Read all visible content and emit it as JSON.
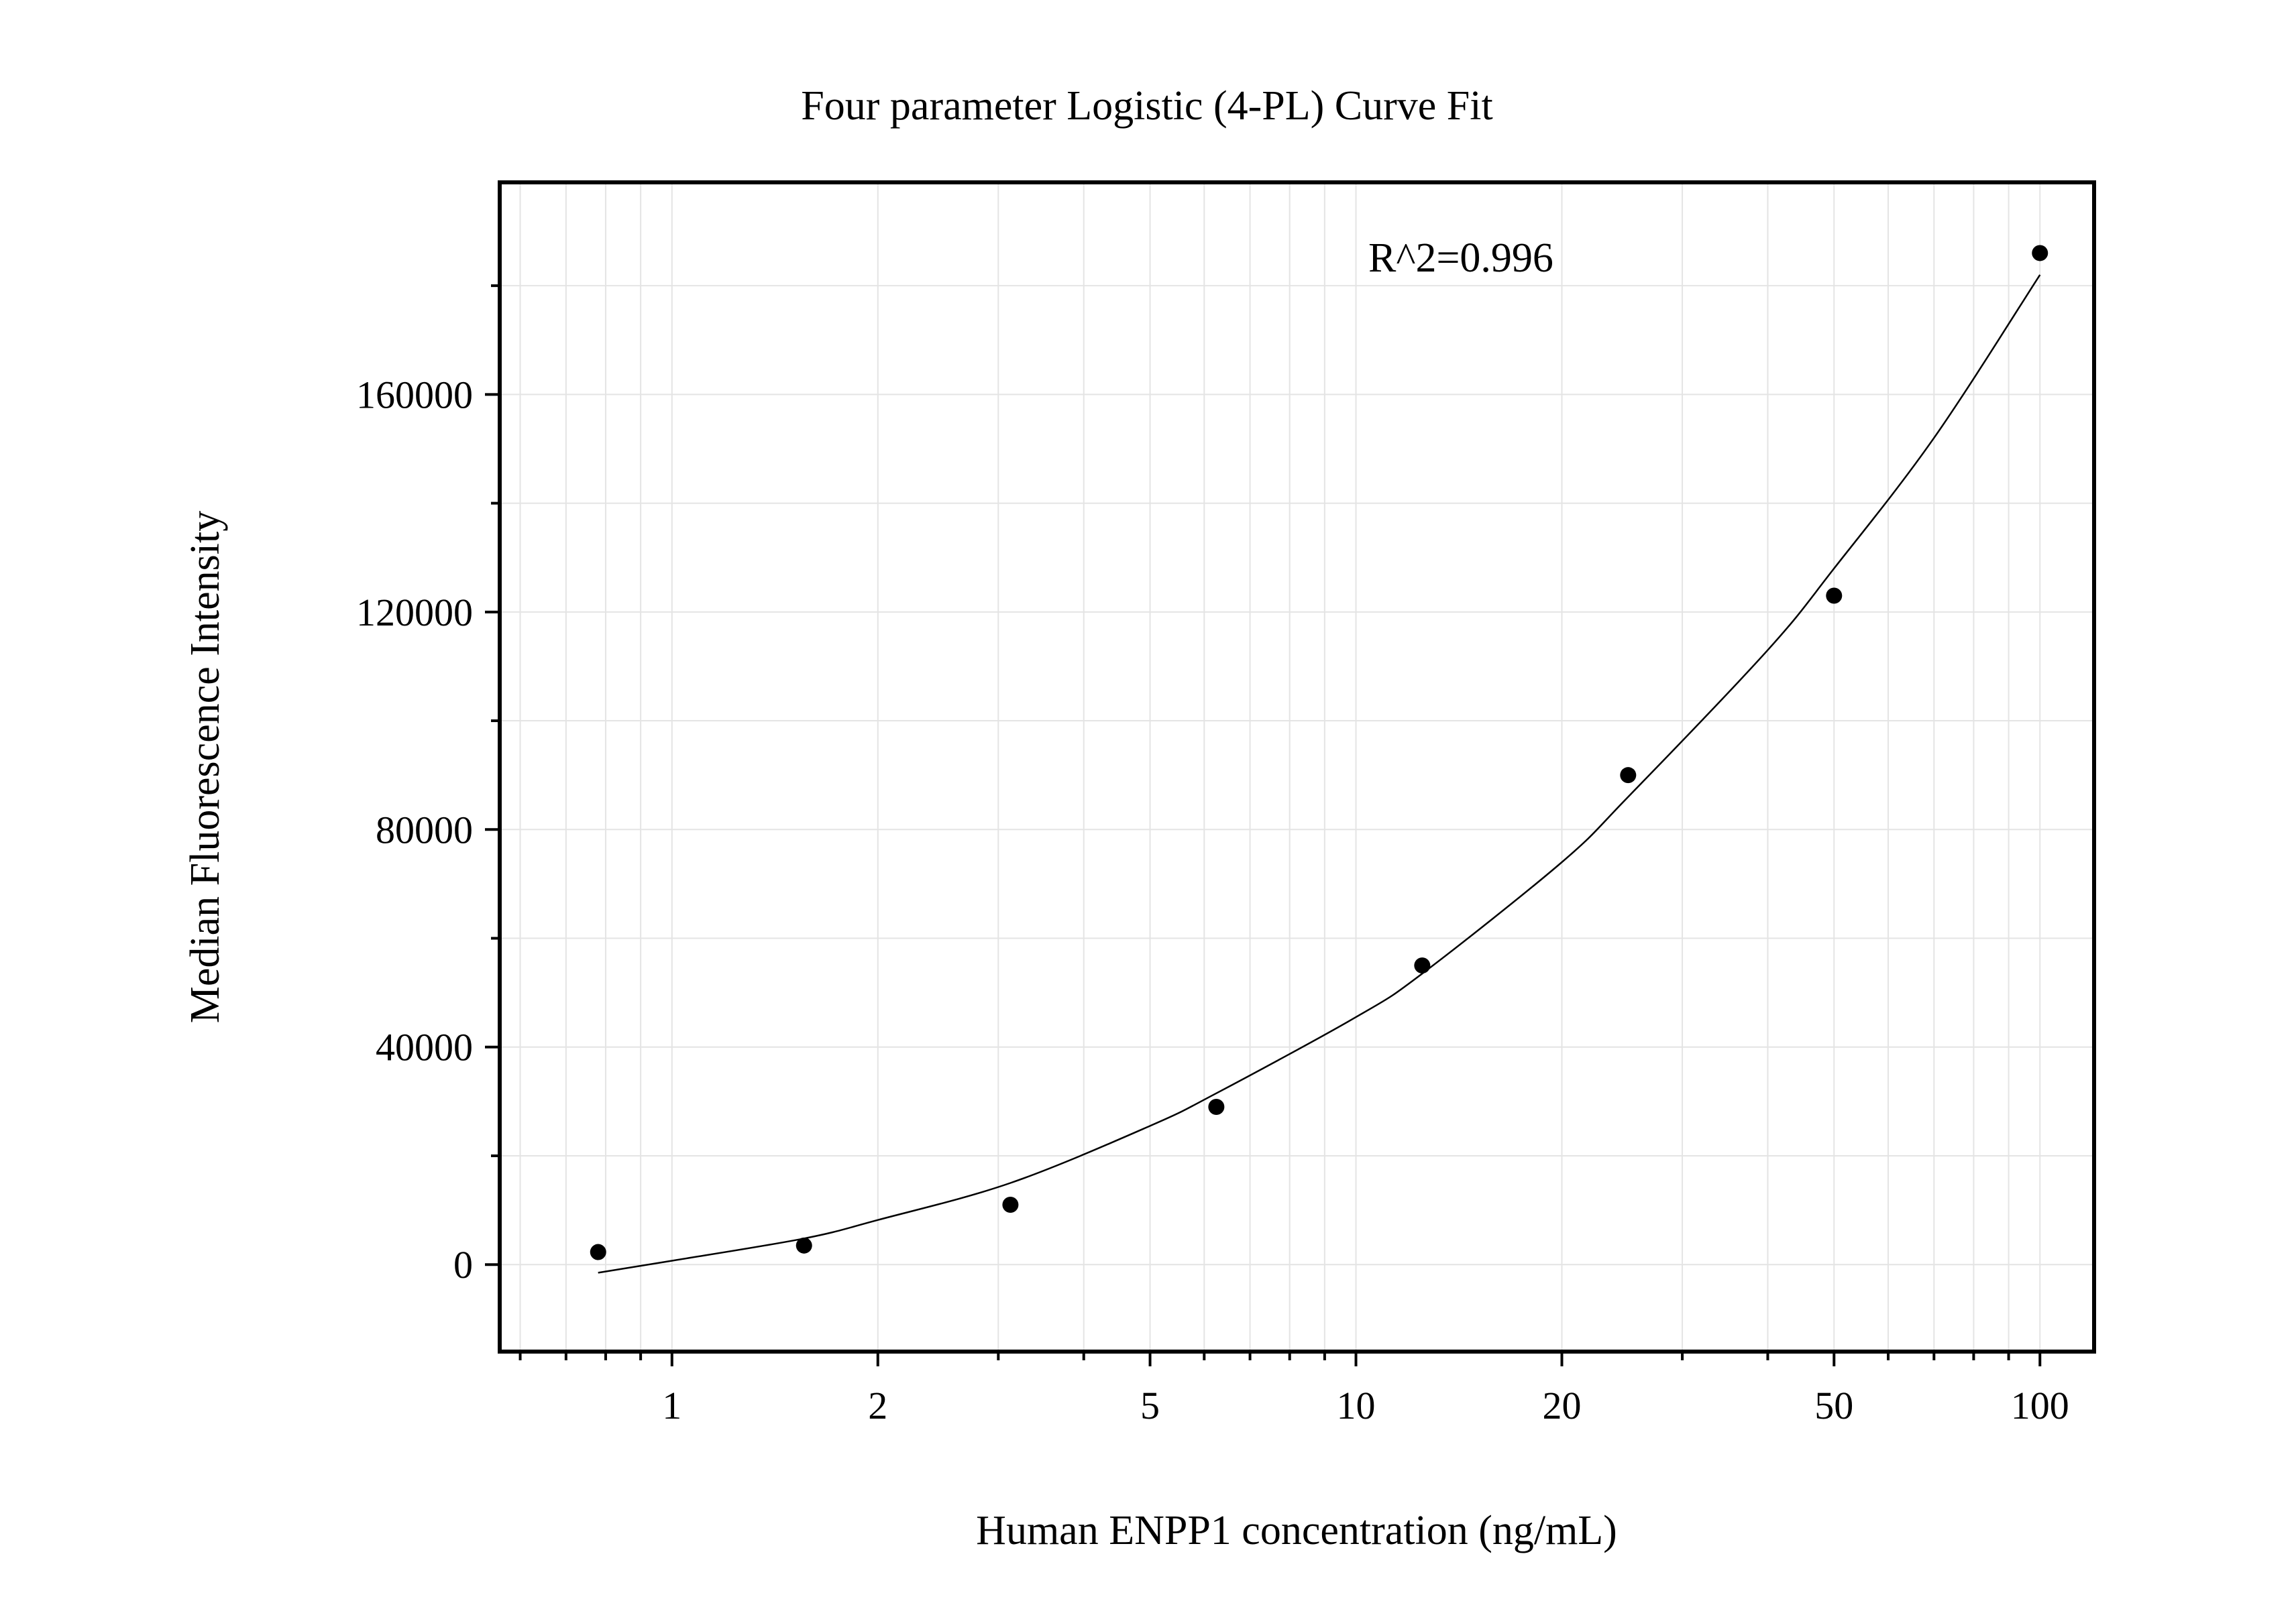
{
  "chart_data": {
    "type": "scatter",
    "title": "Four parameter Logistic (4-PL) Curve Fit",
    "xlabel": "Human ENPP1 concentration (ng/mL)",
    "ylabel": "Median Fluorescence Intensity",
    "x_scale": "log",
    "xlim": [
      0.56,
      120
    ],
    "ylim": [
      -16000,
      199000
    ],
    "x_ticks": [
      1,
      2,
      5,
      10,
      20,
      50,
      100
    ],
    "x_tick_labels": [
      "1",
      "2",
      "5",
      "10",
      "20",
      "50",
      "100"
    ],
    "y_ticks": [
      0,
      40000,
      80000,
      120000,
      160000
    ],
    "y_tick_labels": [
      "0",
      "40000",
      "80000",
      "120000",
      "160000"
    ],
    "grid": true,
    "annotation": "R^2=0.996",
    "series": [
      {
        "marker": "circle",
        "color": "#000000",
        "x": [
          0.78,
          1.56,
          3.125,
          6.25,
          12.5,
          25,
          50,
          100
        ],
        "y": [
          2300,
          3500,
          11000,
          29000,
          55000,
          90000,
          123000,
          186000
        ]
      }
    ],
    "fit_curve": {
      "color": "#000000",
      "x": [
        0.78,
        1.0,
        1.56,
        2.0,
        3.125,
        5.0,
        6.25,
        10.0,
        12.5,
        20.0,
        25.0,
        40.0,
        50.0,
        70.0,
        100.0
      ],
      "y": [
        -1500,
        700,
        4800,
        8200,
        15000,
        25500,
        31500,
        45500,
        53500,
        74000,
        86000,
        113000,
        128000,
        152000,
        182000
      ]
    }
  }
}
